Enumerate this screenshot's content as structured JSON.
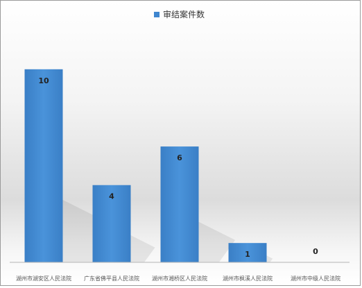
{
  "chart_data": {
    "type": "bar",
    "categories": [
      "湖州市湖安区人民法院",
      "广东省佛平县人民法院",
      "湖州市湘桥区人民法院",
      "湖州市枫溪人民法院",
      "湖州市中级人民法院"
    ],
    "series": [
      {
        "name": "审结案件数",
        "values": [
          10,
          4,
          6,
          1,
          0
        ],
        "color": "#3f86cf"
      }
    ],
    "ylim": [
      0,
      11
    ],
    "grid": false,
    "legend_position": "top"
  }
}
